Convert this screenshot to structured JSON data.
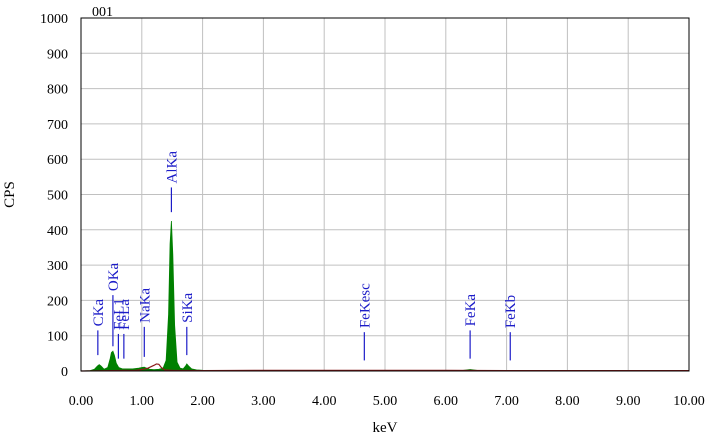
{
  "chart_data": {
    "type": "area",
    "title": "001",
    "xlabel": "keV",
    "ylabel": "CPS",
    "xlim": [
      0,
      10
    ],
    "ylim": [
      0,
      1000
    ],
    "grid": true,
    "x_ticks": [
      "0.00",
      "1.00",
      "2.00",
      "3.00",
      "4.00",
      "5.00",
      "6.00",
      "7.00",
      "8.00",
      "9.00",
      "10.00"
    ],
    "y_ticks": [
      "0",
      "100",
      "200",
      "300",
      "400",
      "500",
      "600",
      "700",
      "800",
      "900",
      "1000"
    ],
    "colors": {
      "spectrum": "#008000",
      "fit_line": "#8b1a1a",
      "peak_labels": "#1c1cc8",
      "grid": "#c0c0c0",
      "axes": "#000000"
    },
    "spectrum": {
      "x": [
        0.0,
        0.15,
        0.22,
        0.27,
        0.3,
        0.33,
        0.38,
        0.44,
        0.48,
        0.5,
        0.525,
        0.55,
        0.58,
        0.62,
        0.68,
        0.75,
        0.85,
        0.95,
        1.0,
        1.04,
        1.08,
        1.13,
        1.2,
        1.28,
        1.35,
        1.4,
        1.44,
        1.465,
        1.487,
        1.51,
        1.54,
        1.58,
        1.63,
        1.68,
        1.72,
        1.74,
        1.77,
        1.82,
        1.9,
        2.0,
        3.0,
        4.0,
        5.0,
        6.0,
        6.25,
        6.35,
        6.4,
        6.45,
        6.55,
        6.7,
        7.0,
        8.0,
        9.0,
        10.0
      ],
      "cps": [
        0,
        1,
        5,
        14,
        18,
        14,
        5,
        10,
        35,
        52,
        56,
        44,
        22,
        10,
        6,
        6,
        6,
        8,
        10,
        11,
        8,
        5,
        4,
        5,
        8,
        30,
        160,
        360,
        425,
        330,
        130,
        25,
        8,
        6,
        14,
        20,
        14,
        6,
        3,
        2,
        1,
        1,
        1,
        1,
        1,
        3,
        4,
        3,
        1,
        1,
        1,
        1,
        1,
        1
      ]
    },
    "fit_line": {
      "x": [
        0.0,
        0.5,
        0.9,
        1.0,
        1.1,
        1.2,
        1.24,
        1.28,
        1.32,
        1.38,
        1.5,
        2.0,
        3.0,
        4.0,
        5.0,
        6.0,
        7.0,
        8.0,
        9.0,
        10.0
      ],
      "cps": [
        0,
        1,
        2,
        4,
        8,
        16,
        20,
        19,
        10,
        3,
        2,
        1,
        2,
        2,
        2,
        2,
        1,
        1,
        1,
        1
      ]
    },
    "annotations": [
      {
        "text": "CKa",
        "x": 0.277,
        "line_bottom_cps": 45,
        "line_top_cps": 115
      },
      {
        "text": "OKa",
        "x": 0.525,
        "line_bottom_cps": 70,
        "line_top_cps": 215
      },
      {
        "text": "FeL1",
        "x": 0.615,
        "line_bottom_cps": 35,
        "line_top_cps": 105
      },
      {
        "text": "FeLa",
        "x": 0.705,
        "line_bottom_cps": 35,
        "line_top_cps": 105
      },
      {
        "text": "NaKa",
        "x": 1.041,
        "line_bottom_cps": 40,
        "line_top_cps": 125
      },
      {
        "text": "AlKa",
        "x": 1.487,
        "line_bottom_cps": 450,
        "line_top_cps": 520
      },
      {
        "text": "SiKa",
        "x": 1.74,
        "line_bottom_cps": 45,
        "line_top_cps": 125
      },
      {
        "text": "FeKesc",
        "x": 4.66,
        "line_bottom_cps": 30,
        "line_top_cps": 110
      },
      {
        "text": "FeKa",
        "x": 6.4,
        "line_bottom_cps": 35,
        "line_top_cps": 115
      },
      {
        "text": "FeKb",
        "x": 7.06,
        "line_bottom_cps": 30,
        "line_top_cps": 110
      }
    ]
  }
}
